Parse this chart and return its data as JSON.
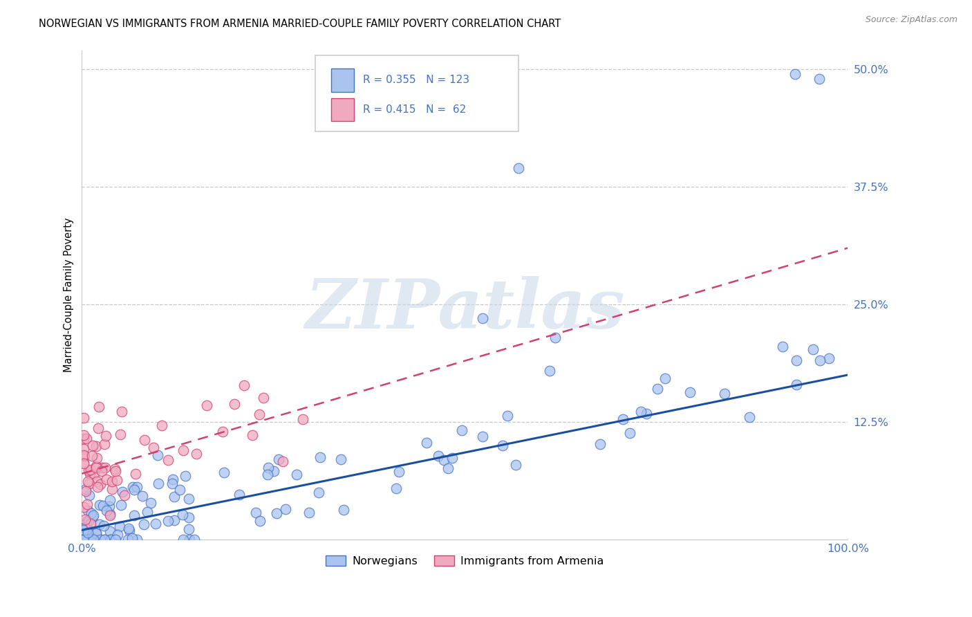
{
  "title": "NORWEGIAN VS IMMIGRANTS FROM ARMENIA MARRIED-COUPLE FAMILY POVERTY CORRELATION CHART",
  "source": "Source: ZipAtlas.com",
  "ylabel": "Married-Couple Family Poverty",
  "xlim": [
    0.0,
    1.0
  ],
  "ylim": [
    0.0,
    0.52
  ],
  "ytick_vals": [
    0.0,
    0.125,
    0.25,
    0.375,
    0.5
  ],
  "ytick_labels": [
    "",
    "12.5%",
    "25.0%",
    "37.5%",
    "50.0%"
  ],
  "xtick_vals": [
    0.0,
    0.25,
    0.5,
    0.75,
    1.0
  ],
  "xtick_labels": [
    "0.0%",
    "",
    "",
    "",
    "100.0%"
  ],
  "norwegian_fill": "#aac4f0",
  "norwegian_edge": "#4472c4",
  "armenia_fill": "#f0aac0",
  "armenia_edge": "#d04070",
  "nor_line_color": "#1a4fa0",
  "arm_line_color": "#d04070",
  "R_norwegian": 0.355,
  "N_norwegian": 123,
  "R_armenia": 0.415,
  "N_armenia": 62,
  "legend_labels": [
    "Norwegians",
    "Immigrants from Armenia"
  ],
  "watermark": "ZIPatlas",
  "background_color": "#ffffff",
  "grid_color": "#c8c8c8",
  "tick_color": "#4472c4",
  "nor_line_start": 0.01,
  "nor_line_end": 0.175,
  "arm_line_start": 0.07,
  "arm_line_end": 0.31
}
